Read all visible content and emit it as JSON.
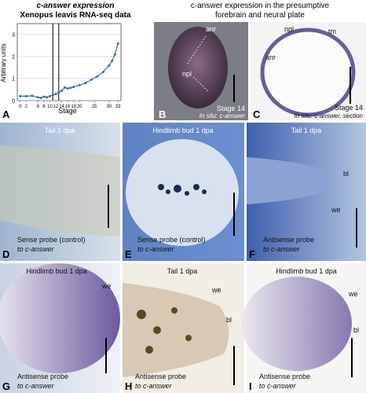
{
  "chart_data": {
    "type": "line",
    "label": "A",
    "title": "c-answer expression",
    "subtitle": "Xenopus leavis RNA-seq data",
    "x_label": "Stage",
    "y_label": "Arbitrary units",
    "x": [
      0,
      2,
      4,
      6,
      7,
      8,
      9,
      10,
      11,
      12,
      13,
      14,
      15,
      16,
      17,
      18,
      20,
      22,
      24,
      26,
      28,
      30,
      31,
      32,
      33
    ],
    "values": [
      0.2,
      0.2,
      0.22,
      0.15,
      0.12,
      0.18,
      0.15,
      0.2,
      0.25,
      0.3,
      0.38,
      0.45,
      0.6,
      0.55,
      0.58,
      0.62,
      0.7,
      0.8,
      0.95,
      1.1,
      1.3,
      1.6,
      1.8,
      2.1,
      2.6
    ],
    "color": "#2f6db5",
    "xlim": [
      -1,
      34
    ],
    "ylim": [
      0,
      3.5
    ],
    "xticks": [
      0,
      2,
      6,
      8,
      10,
      12,
      14,
      16,
      18,
      20,
      25,
      30,
      33
    ],
    "yticks": [
      0,
      1,
      2,
      3
    ],
    "grid": true,
    "vlines": [
      11,
      13
    ]
  },
  "header_bc": [
    "c-answer expression in the presumptive",
    "forebrain and neural plate"
  ],
  "panels": [
    {
      "letter": "B",
      "labels": [
        "anr",
        "npl",
        "Stage 14",
        "In situ: c-answer"
      ]
    },
    {
      "letter": "C",
      "labels": [
        "npl",
        "tm",
        "anr",
        "Stage 14",
        "In situ: c-answer, section"
      ]
    },
    {
      "letter": "D",
      "labels": [
        "Tail 1 dpa",
        "Sense probe (control)",
        "to c-answer"
      ]
    },
    {
      "letter": "E",
      "labels": [
        "Hindlimb bud 1 dpa",
        "Sense probe (control)",
        "to c-answer"
      ]
    },
    {
      "letter": "F",
      "labels": [
        "Tail 1 dpa",
        "bl",
        "we",
        "Antisense probe",
        "to c-answer"
      ]
    },
    {
      "letter": "G",
      "labels": [
        "Hindlimb bud 1 dpa",
        "we",
        "Antisense probe",
        "to c-answer"
      ]
    },
    {
      "letter": "H",
      "labels": [
        "Tail 1 dpa",
        "we",
        "bl",
        "Antisense probe",
        "to c-answer"
      ]
    },
    {
      "letter": "I",
      "labels": [
        "Hindlimb bud 1 dpa",
        "we",
        "bl",
        "Antisense probe",
        "to c-answer"
      ]
    }
  ]
}
